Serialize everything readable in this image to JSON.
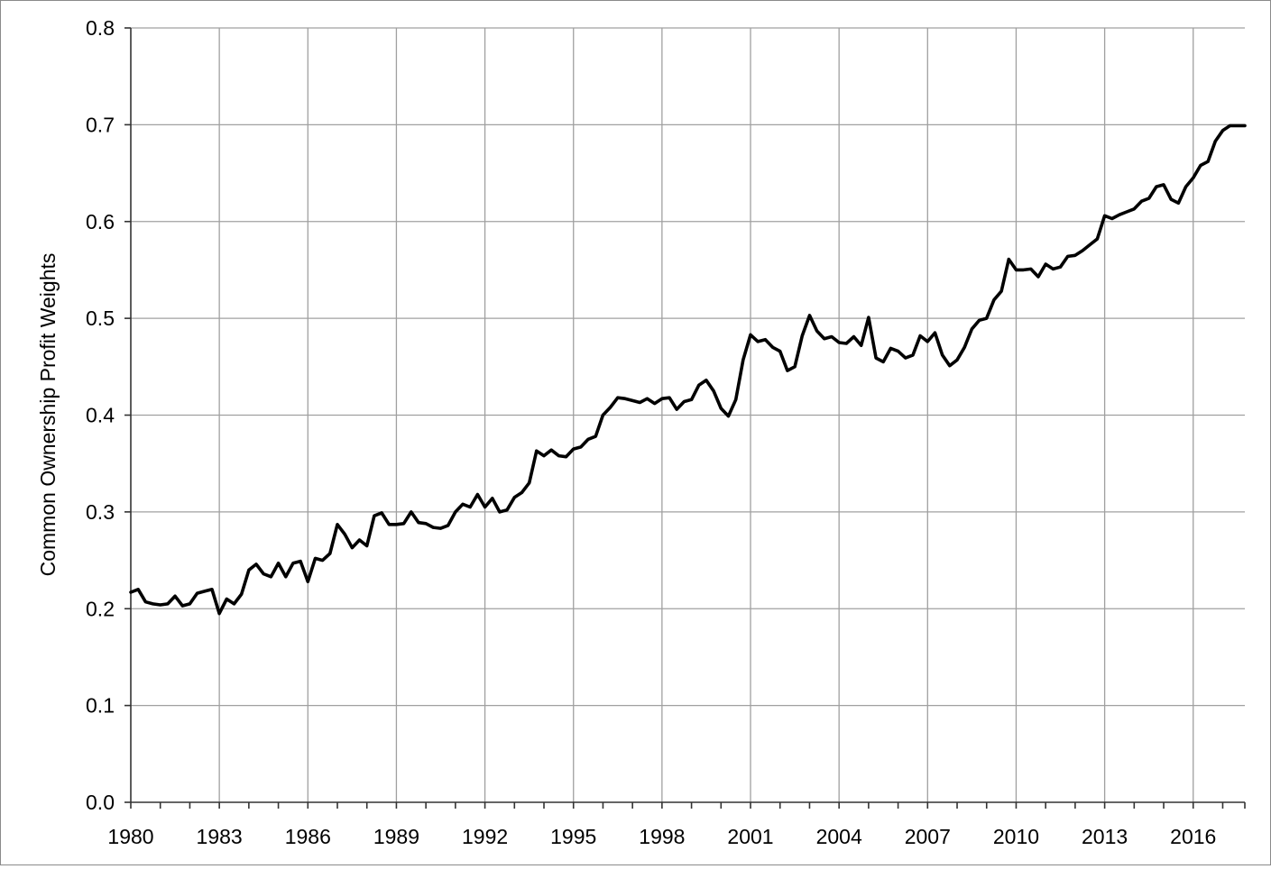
{
  "chart_data": {
    "type": "line",
    "title": "",
    "xlabel": "",
    "ylabel": "Common Ownership Profit Weights",
    "xlim": [
      1980,
      2017.75
    ],
    "ylim": [
      0,
      0.8
    ],
    "grid": true,
    "legend": "none",
    "x_ticks": [
      "1980",
      "1983",
      "1986",
      "1989",
      "1992",
      "1995",
      "1998",
      "2001",
      "2004",
      "2007",
      "2010",
      "2013",
      "2016"
    ],
    "y_ticks": [
      "0.0",
      "0.1",
      "0.2",
      "0.3",
      "0.4",
      "0.5",
      "0.6",
      "0.7",
      "0.8"
    ],
    "series": [
      {
        "color": "#000000",
        "x": [
          1980.0,
          1980.25,
          1980.5,
          1980.75,
          1981.0,
          1981.25,
          1981.5,
          1981.75,
          1982.0,
          1982.25,
          1982.5,
          1982.75,
          1983.0,
          1983.25,
          1983.5,
          1983.75,
          1984.0,
          1984.25,
          1984.5,
          1984.75,
          1985.0,
          1985.25,
          1985.5,
          1985.75,
          1986.0,
          1986.25,
          1986.5,
          1986.75,
          1987.0,
          1987.25,
          1987.5,
          1987.75,
          1988.0,
          1988.25,
          1988.5,
          1988.75,
          1989.0,
          1989.25,
          1989.5,
          1989.75,
          1990.0,
          1990.25,
          1990.5,
          1990.75,
          1991.0,
          1991.25,
          1991.5,
          1991.75,
          1992.0,
          1992.25,
          1992.5,
          1992.75,
          1993.0,
          1993.25,
          1993.5,
          1993.75,
          1994.0,
          1994.25,
          1994.5,
          1994.75,
          1995.0,
          1995.25,
          1995.5,
          1995.75,
          1996.0,
          1996.25,
          1996.5,
          1996.75,
          1997.0,
          1997.25,
          1997.5,
          1997.75,
          1998.0,
          1998.25,
          1998.5,
          1998.75,
          1999.0,
          1999.25,
          1999.5,
          1999.75,
          2000.0,
          2000.25,
          2000.5,
          2000.75,
          2001.0,
          2001.25,
          2001.5,
          2001.75,
          2002.0,
          2002.25,
          2002.5,
          2002.75,
          2003.0,
          2003.25,
          2003.5,
          2003.75,
          2004.0,
          2004.25,
          2004.5,
          2004.75,
          2005.0,
          2005.25,
          2005.5,
          2005.75,
          2006.0,
          2006.25,
          2006.5,
          2006.75,
          2007.0,
          2007.25,
          2007.5,
          2007.75,
          2008.0,
          2008.25,
          2008.5,
          2008.75,
          2009.0,
          2009.25,
          2009.5,
          2009.75,
          2010.0,
          2010.25,
          2010.5,
          2010.75,
          2011.0,
          2011.25,
          2011.5,
          2011.75,
          2012.0,
          2012.25,
          2012.5,
          2012.75,
          2013.0,
          2013.25,
          2013.5,
          2013.75,
          2014.0,
          2014.25,
          2014.5,
          2014.75,
          2015.0,
          2015.25,
          2015.5,
          2015.75,
          2016.0,
          2016.25,
          2016.5,
          2016.75,
          2017.0,
          2017.25,
          2017.5,
          2017.75
        ],
        "y": [
          0.217,
          0.22,
          0.207,
          0.205,
          0.204,
          0.205,
          0.213,
          0.203,
          0.205,
          0.216,
          0.218,
          0.22,
          0.195,
          0.21,
          0.205,
          0.215,
          0.24,
          0.246,
          0.236,
          0.233,
          0.247,
          0.233,
          0.247,
          0.249,
          0.228,
          0.252,
          0.25,
          0.257,
          0.287,
          0.277,
          0.263,
          0.271,
          0.265,
          0.296,
          0.299,
          0.287,
          0.287,
          0.288,
          0.3,
          0.289,
          0.288,
          0.284,
          0.283,
          0.286,
          0.3,
          0.308,
          0.305,
          0.318,
          0.305,
          0.314,
          0.3,
          0.302,
          0.315,
          0.32,
          0.33,
          0.363,
          0.358,
          0.364,
          0.358,
          0.357,
          0.365,
          0.367,
          0.375,
          0.378,
          0.4,
          0.408,
          0.418,
          0.417,
          0.415,
          0.413,
          0.417,
          0.412,
          0.417,
          0.418,
          0.406,
          0.414,
          0.416,
          0.431,
          0.436,
          0.425,
          0.407,
          0.399,
          0.416,
          0.457,
          0.483,
          0.476,
          0.478,
          0.47,
          0.466,
          0.446,
          0.45,
          0.482,
          0.503,
          0.487,
          0.479,
          0.481,
          0.475,
          0.474,
          0.481,
          0.472,
          0.501,
          0.459,
          0.455,
          0.469,
          0.466,
          0.459,
          0.462,
          0.482,
          0.476,
          0.485,
          0.462,
          0.451,
          0.457,
          0.47,
          0.489,
          0.498,
          0.5,
          0.519,
          0.528,
          0.561,
          0.55,
          0.55,
          0.551,
          0.543,
          0.556,
          0.551,
          0.553,
          0.564,
          0.565,
          0.57,
          0.576,
          0.582,
          0.606,
          0.603,
          0.607,
          0.61,
          0.613,
          0.621,
          0.624,
          0.636,
          0.638,
          0.623,
          0.619,
          0.636,
          0.645,
          0.658,
          0.662,
          0.683,
          0.694,
          0.699,
          0.699,
          0.699
        ]
      }
    ]
  }
}
